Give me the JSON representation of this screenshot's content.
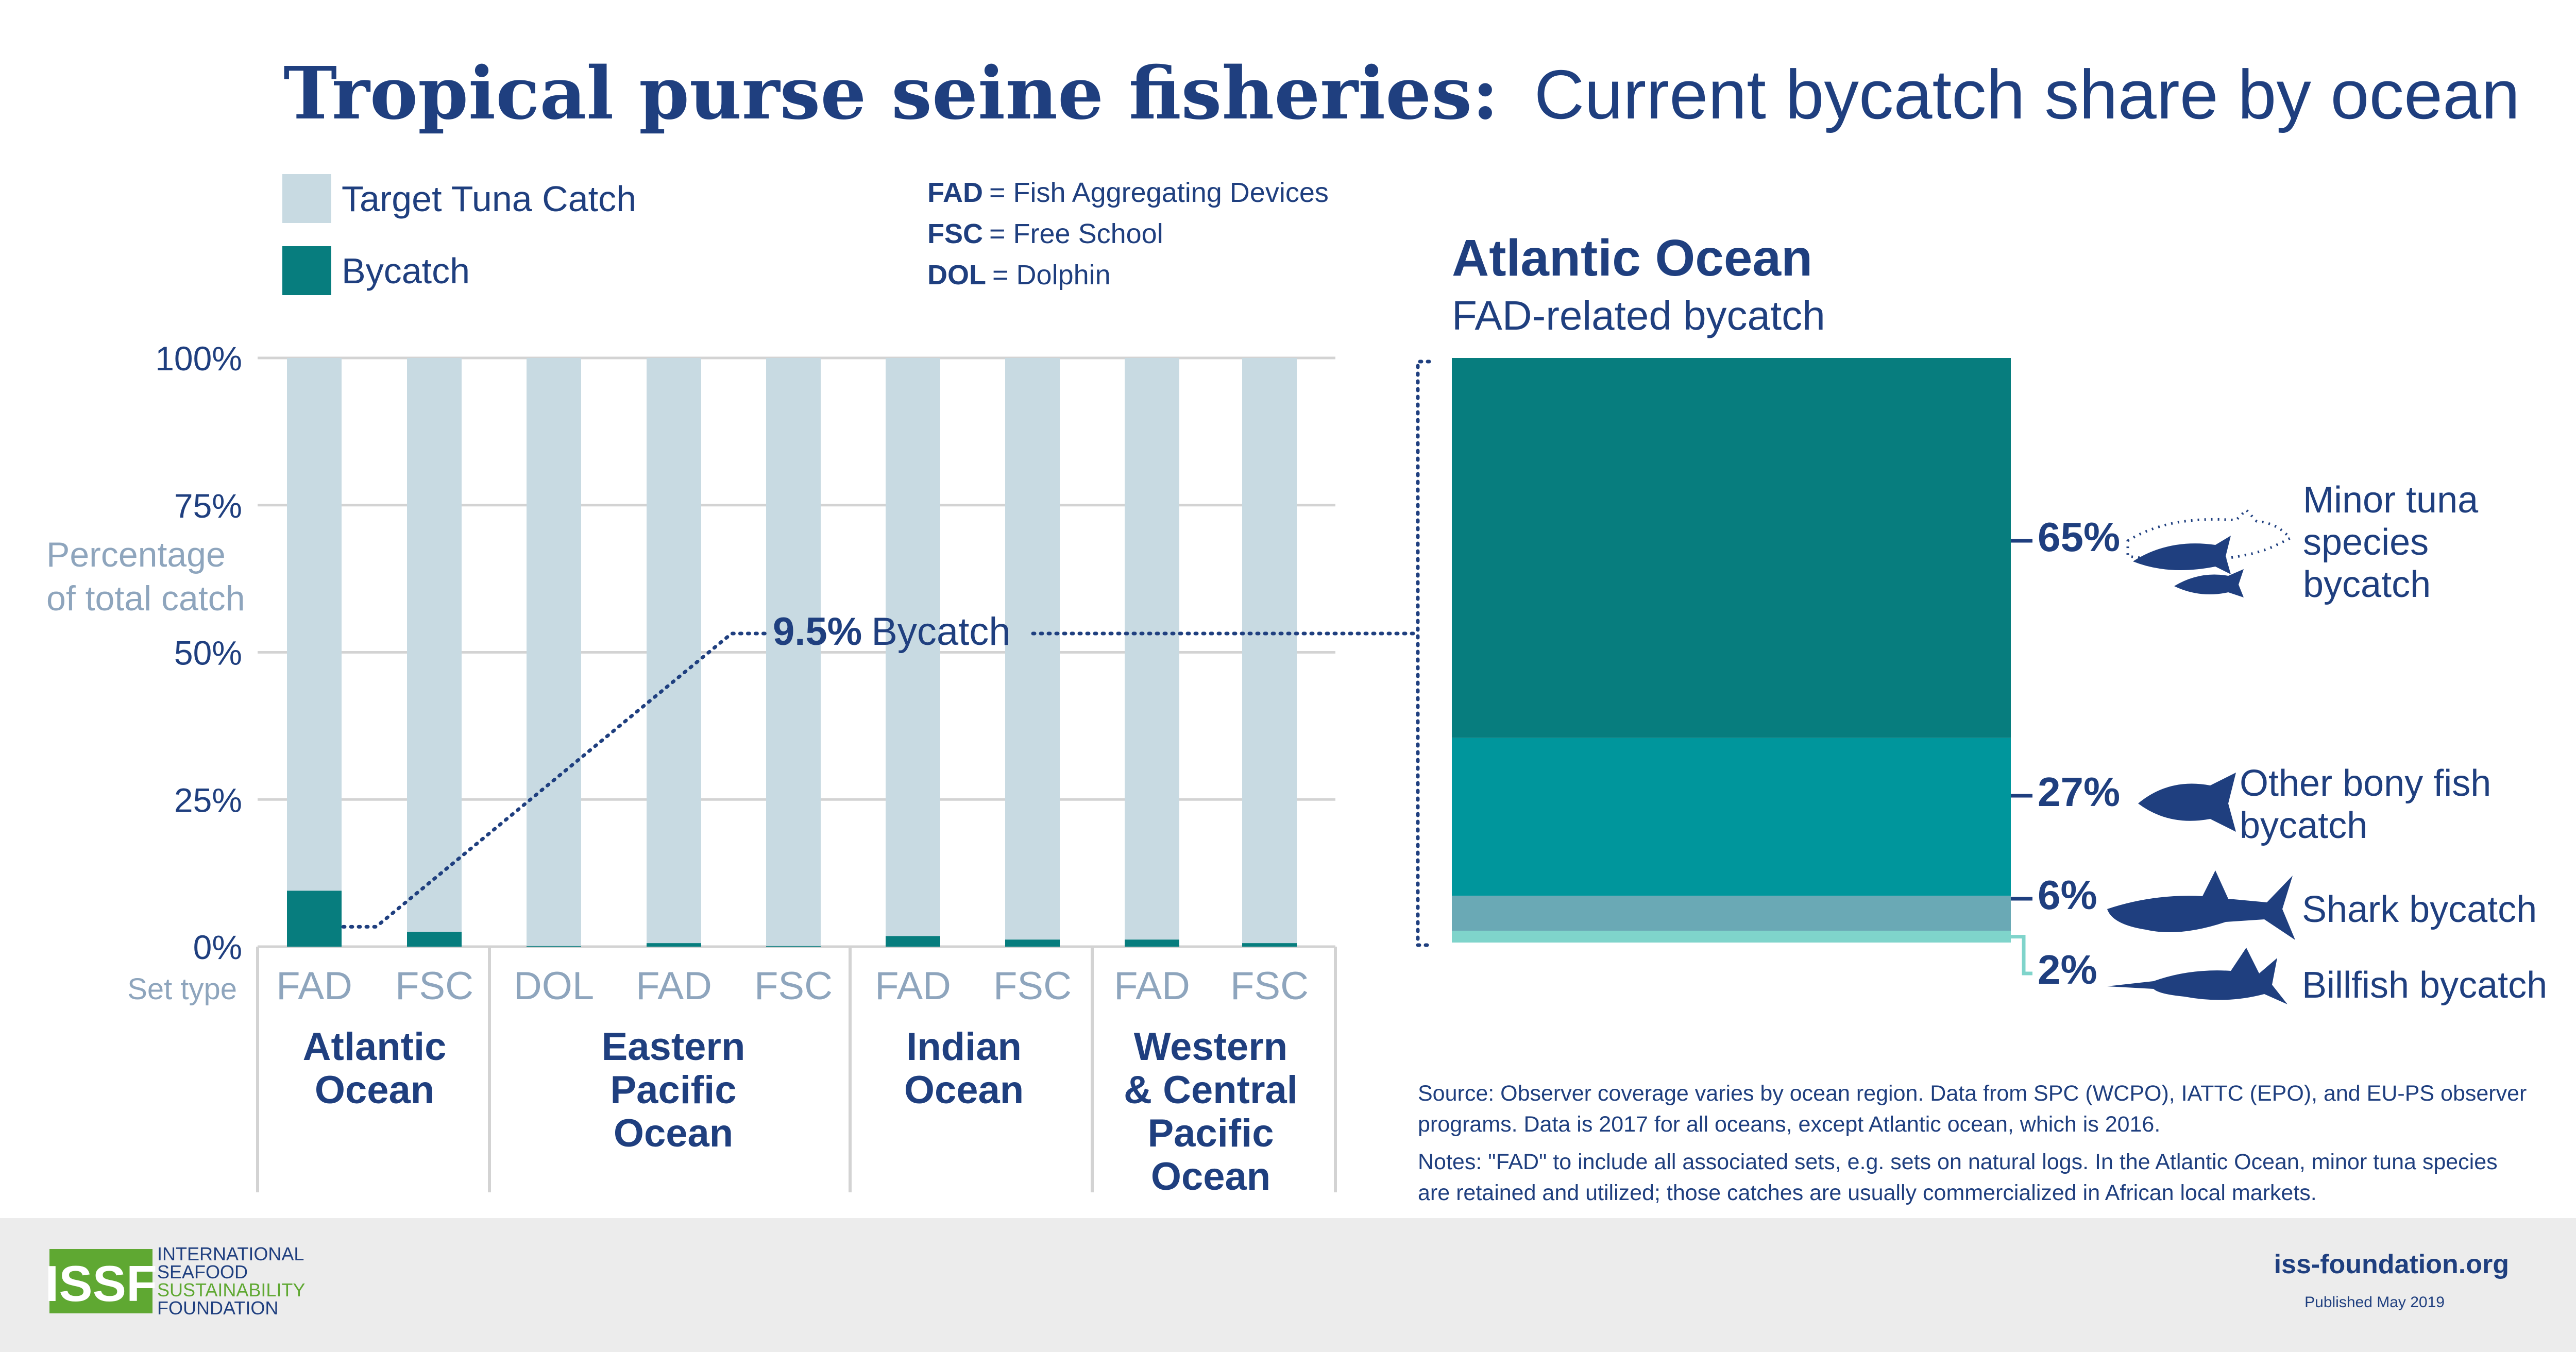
{
  "title": {
    "bold": "Tropical purse seine fisheries:",
    "light": "Current bycatch share by ocean"
  },
  "legend": {
    "target": "Target Tuna Catch",
    "bycatch": "Bycatch"
  },
  "abbreviations": [
    {
      "code": "FAD",
      "meaning": "= Fish Aggregating Devices"
    },
    {
      "code": "FSC",
      "meaning": "= Free School"
    },
    {
      "code": "DOL",
      "meaning": "= Dolphin"
    }
  ],
  "colors": {
    "target": "#c8dae2",
    "bycatch": "#077d7e",
    "navy": "#1f3f7f",
    "minor_tuna": "#077d7e",
    "bony_fish": "#00969c",
    "shark": "#6aa9b5",
    "billfish": "#7fd4cb"
  },
  "chart_data": [
    {
      "type": "bar",
      "stacked": true,
      "ylabel": "Percentage of total catch",
      "xlabel": "Set type",
      "ylim": [
        0,
        100
      ],
      "yticks": [
        "0%",
        "25%",
        "50%",
        "75%",
        "100%"
      ],
      "grid": true,
      "categories": [
        "FAD",
        "FSC",
        "DOL",
        "FAD",
        "FSC",
        "FAD",
        "FSC",
        "FAD",
        "FSC"
      ],
      "groups": [
        {
          "name": "Atlantic Ocean",
          "lines": [
            "Atlantic",
            "Ocean"
          ]
        },
        {
          "name": "Eastern Pacific Ocean",
          "lines": [
            "Eastern",
            "Pacific",
            "Ocean"
          ]
        },
        {
          "name": "Indian Ocean",
          "lines": [
            "Indian",
            "Ocean"
          ]
        },
        {
          "name": "Western & Central Pacific Ocean",
          "lines": [
            "Western",
            "& Central",
            "Pacific",
            "Ocean"
          ]
        }
      ],
      "series": [
        {
          "name": "Bycatch",
          "values": [
            9.5,
            2.5,
            0.1,
            0.6,
            0.1,
            1.8,
            1.2,
            1.2,
            0.6
          ]
        },
        {
          "name": "Target Tuna Catch",
          "values": [
            90.5,
            97.5,
            99.9,
            99.4,
            99.9,
            98.2,
            98.8,
            98.8,
            99.4
          ]
        }
      ],
      "annotation": {
        "value": "9.5%",
        "text": "Bycatch"
      }
    },
    {
      "type": "bar",
      "stacked": true,
      "title": "Atlantic Ocean",
      "subtitle": "FAD-related bycatch",
      "ylim": [
        0,
        100
      ],
      "series": [
        {
          "name": "Minor tuna species bycatch",
          "label": "65%",
          "value": 65,
          "lines": [
            "Minor tuna",
            "species",
            "bycatch"
          ]
        },
        {
          "name": "Other bony fish bycatch",
          "label": "27%",
          "value": 27,
          "lines": [
            "Other bony fish",
            "bycatch"
          ]
        },
        {
          "name": "Shark bycatch",
          "label": "6%",
          "value": 6,
          "lines": [
            "Shark bycatch"
          ]
        },
        {
          "name": "Billfish bycatch",
          "label": "2%",
          "value": 2,
          "lines": [
            "Billfish bycatch"
          ]
        }
      ]
    }
  ],
  "source_note": [
    "Source: Observer coverage varies by ocean region. Data from SPC (WCPO), IATTC (EPO), and EU-PS observer",
    "programs. Data is 2017 for all oceans, except Atlantic ocean, which is 2016.",
    "Notes: \"FAD\" to include all associated sets, e.g. sets on natural logs. In the Atlantic Ocean, minor tuna species",
    "are retained and utilized; those catches are usually commercialized in African local markets."
  ],
  "footer": {
    "logo_letters": "ISSF",
    "logo_lines": [
      "INTERNATIONAL",
      "SEAFOOD",
      "SUSTAINABILITY",
      "FOUNDATION"
    ],
    "url": "iss-foundation.org",
    "published": "Published May 2019"
  }
}
